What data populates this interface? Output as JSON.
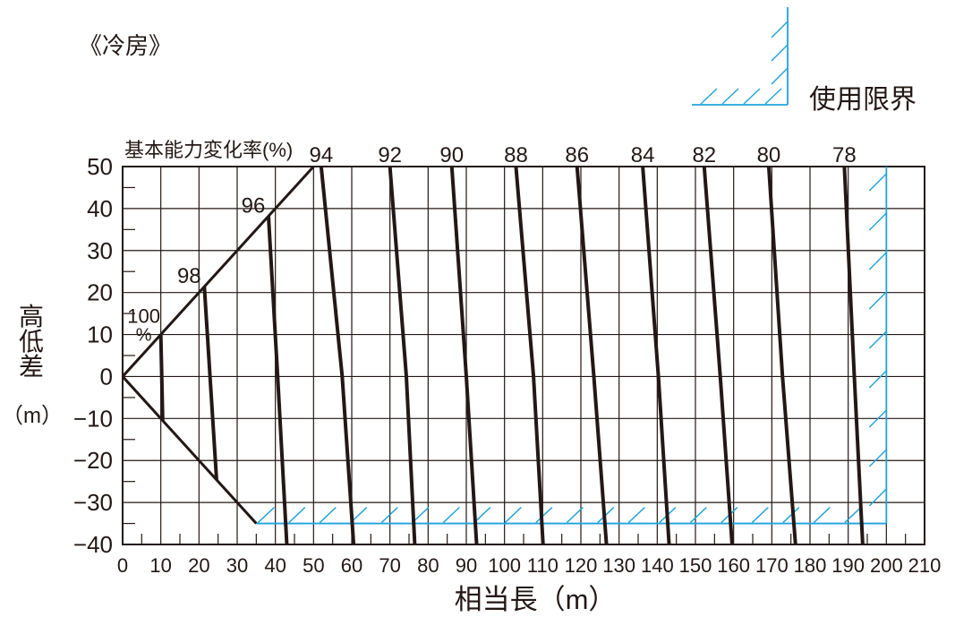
{
  "mode_label": "《冷房》",
  "chart_data": {
    "type": "line",
    "title": "基本能力変化率(%)",
    "xlabel": "相当長（m）",
    "ylabel": "高低差",
    "ylabel_unit": "（m）",
    "xlim": [
      0,
      210
    ],
    "ylim": [
      -40,
      50
    ],
    "xticks": [
      0,
      10,
      20,
      30,
      40,
      50,
      60,
      70,
      80,
      90,
      100,
      110,
      120,
      130,
      140,
      150,
      160,
      170,
      180,
      190,
      200,
      210
    ],
    "yticks": [
      50,
      40,
      30,
      20,
      10,
      0,
      -10,
      -20,
      -30,
      -40
    ],
    "ytick_labels": [
      "50",
      "40",
      "30",
      "20",
      "10",
      "0",
      "−10",
      "−20",
      "−30",
      "−40"
    ],
    "grid": true,
    "legend": [
      {
        "name": "使用限界"
      }
    ],
    "legend_placement": "top-right",
    "colors": {
      "line": "#231815",
      "limit": "#1fa3dc"
    },
    "usage_limit": {
      "max_length": 200,
      "min_height_difference": -35
    },
    "boundaries": {
      "upper": [
        [
          0,
          0
        ],
        [
          50,
          50
        ]
      ],
      "lower": [
        [
          0,
          0
        ],
        [
          35,
          -35
        ]
      ]
    },
    "series": [
      {
        "name": "100",
        "unit": "%",
        "points": [
          [
            10,
            10
          ],
          [
            10.5,
            -10.5
          ]
        ]
      },
      {
        "name": "98",
        "points": [
          [
            21.4,
            21.4
          ],
          [
            24.6,
            -24.6
          ]
        ]
      },
      {
        "name": "96",
        "points": [
          [
            38.2,
            38.2
          ],
          [
            40.6,
            0
          ],
          [
            43,
            -40
          ]
        ]
      },
      {
        "name": "94",
        "points": [
          [
            52,
            50
          ],
          [
            57.5,
            0
          ],
          [
            60.5,
            -40
          ]
        ]
      },
      {
        "name": "92",
        "points": [
          [
            70,
            50
          ],
          [
            74.3,
            0
          ],
          [
            76.5,
            -40
          ]
        ]
      },
      {
        "name": "90",
        "points": [
          [
            86.2,
            50
          ],
          [
            90,
            0
          ],
          [
            92.7,
            -40
          ]
        ]
      },
      {
        "name": "88",
        "points": [
          [
            103,
            50
          ],
          [
            107.6,
            0
          ],
          [
            110.1,
            -40
          ]
        ]
      },
      {
        "name": "86",
        "points": [
          [
            119,
            50
          ],
          [
            123.4,
            0
          ],
          [
            126.7,
            -40
          ]
        ]
      },
      {
        "name": "84",
        "points": [
          [
            136.2,
            50
          ],
          [
            140.3,
            0
          ],
          [
            143.1,
            -40
          ]
        ]
      },
      {
        "name": "82",
        "points": [
          [
            152.3,
            50
          ],
          [
            156.5,
            0
          ],
          [
            159.6,
            -40
          ]
        ]
      },
      {
        "name": "80",
        "points": [
          [
            169.2,
            50
          ],
          [
            172.8,
            0
          ],
          [
            176.2,
            -40
          ]
        ]
      },
      {
        "name": "78",
        "points": [
          [
            189,
            50
          ],
          [
            191.6,
            0
          ],
          [
            193.8,
            -40
          ]
        ]
      }
    ]
  }
}
